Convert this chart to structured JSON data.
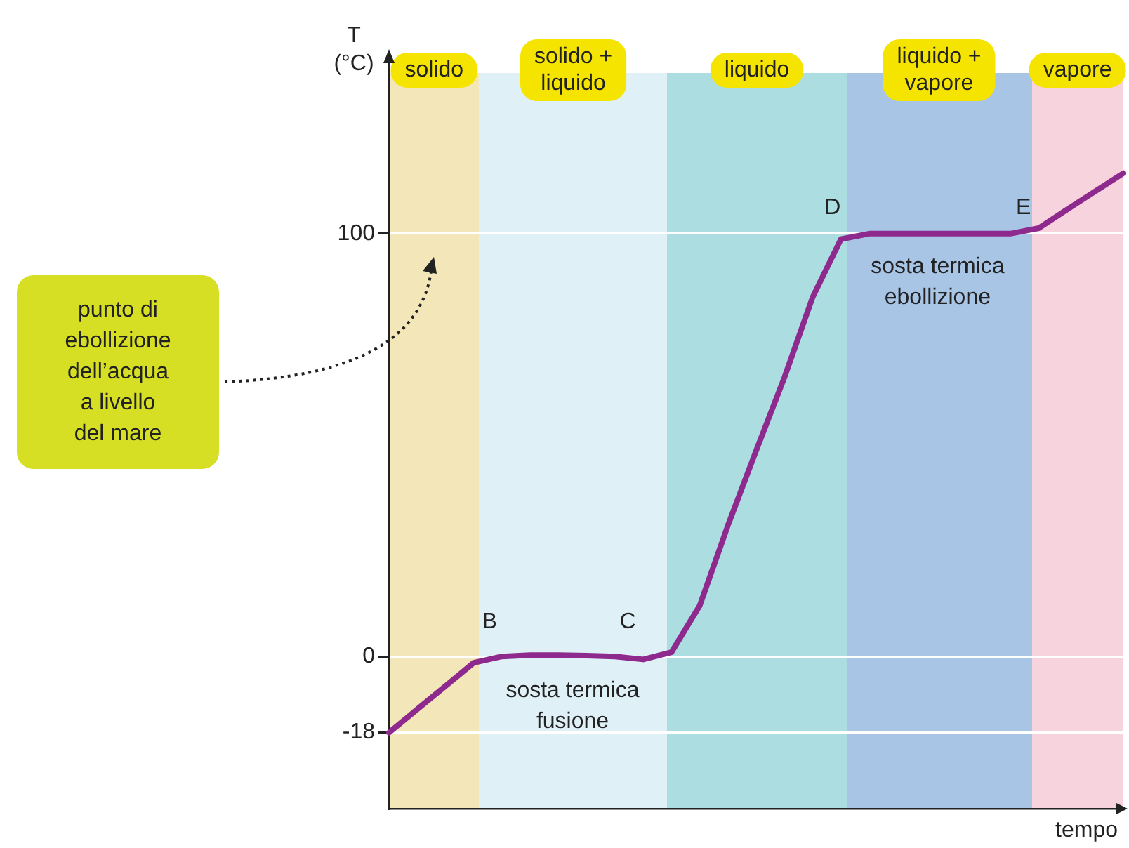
{
  "chart_data": {
    "type": "line",
    "xlabel": "tempo",
    "ylabel": "T\n(°C)",
    "categories": [
      null,
      null,
      null,
      null,
      null,
      null,
      null,
      null,
      null,
      null,
      null,
      null,
      null,
      null,
      null,
      null,
      null,
      null,
      null,
      null,
      null,
      null,
      null,
      null,
      null,
      null,
      null
    ],
    "series": [
      {
        "color": "#8e2a8e",
        "values": [
          -18,
          -12.5,
          -7,
          -1.5,
          0,
          0.3,
          0.3,
          0.2,
          0,
          -0.7,
          1,
          12,
          31,
          48.7,
          66,
          85,
          98.7,
          100,
          100,
          100,
          100,
          100,
          100,
          101.3,
          105.7,
          110,
          114.3
        ]
      }
    ],
    "ylim": [
      -36,
      138
    ],
    "yticks": [
      -18,
      0,
      100
    ],
    "tick_labels": "y",
    "grid": "y",
    "legend": false,
    "marker": "none",
    "line_style": "solid",
    "annotations": [
      "solido",
      "solido +\nliquido",
      "liquido",
      "liquido +\nvapore",
      "vapore",
      "B",
      "C",
      "D",
      "E",
      "sosta termica\nfusione",
      "sosta termica\nebollizione",
      "punto di\nebollizione\ndell’acqua\na livello\ndel mare"
    ]
  }
}
